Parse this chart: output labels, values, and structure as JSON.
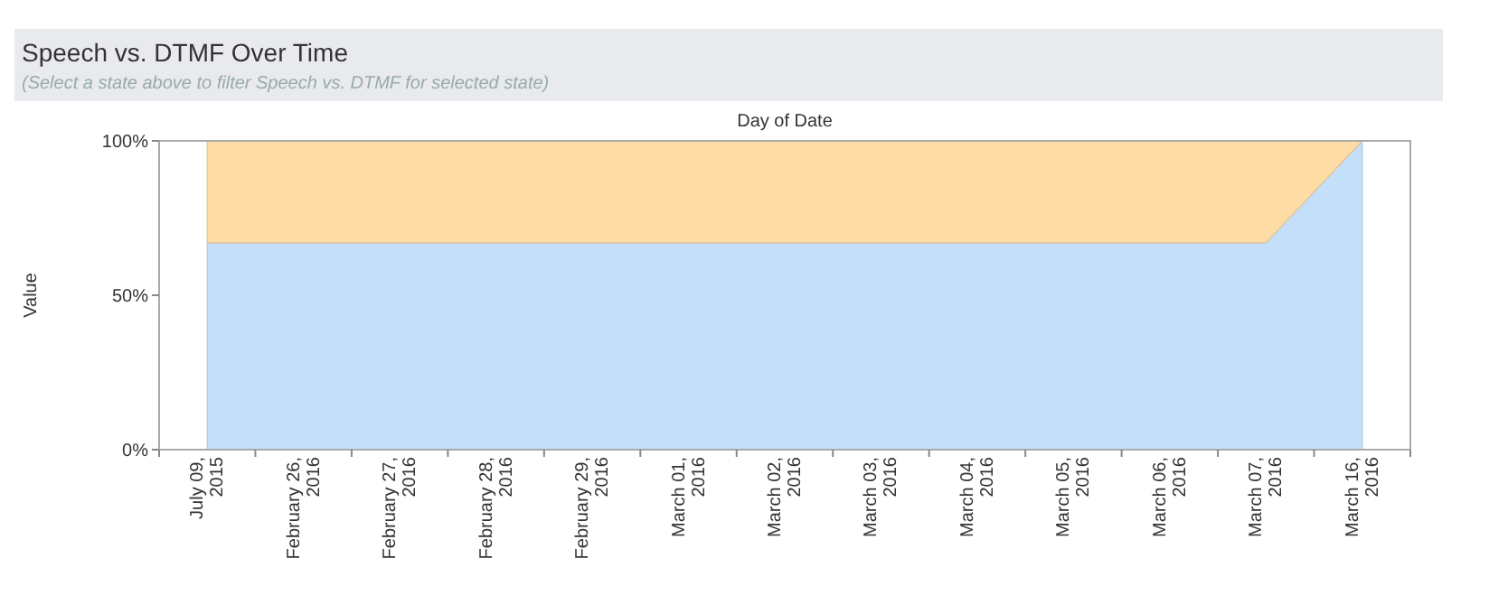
{
  "chart_data": {
    "type": "area",
    "title": "Speech vs. DTMF Over Time",
    "subtitle": "(Select a state above to filter Speech vs. DTMF for selected state)",
    "xlabel": "Day of Date",
    "ylabel": "Value",
    "categories": [
      "July 09, 2015",
      "February 26, 2016",
      "February 27, 2016",
      "February 28, 2016",
      "February 29, 2016",
      "March 01, 2016",
      "March 02, 2016",
      "March 03, 2016",
      "March 04, 2016",
      "March 05, 2016",
      "March 06, 2016",
      "March 07, 2016",
      "March 16, 2016"
    ],
    "stacked": true,
    "ylim": [
      0,
      100
    ],
    "yticks": [
      {
        "value": 0,
        "label": "0%"
      },
      {
        "value": 50,
        "label": "50%"
      },
      {
        "value": 100,
        "label": "100%"
      }
    ],
    "grid": false,
    "series": [
      {
        "color": "#c4dffa",
        "values": [
          67,
          67,
          67,
          67,
          67,
          67,
          67,
          67,
          67,
          67,
          67,
          67,
          100
        ]
      },
      {
        "color": "#fddca5",
        "values": [
          33,
          33,
          33,
          33,
          33,
          33,
          33,
          33,
          33,
          33,
          33,
          33,
          0
        ]
      }
    ]
  }
}
